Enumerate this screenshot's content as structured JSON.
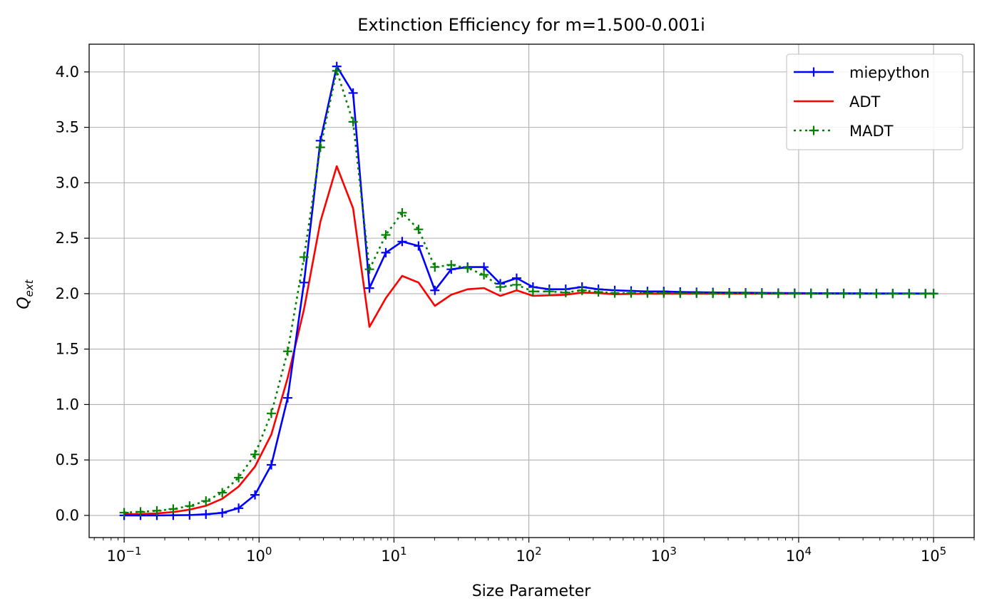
{
  "chart_data": {
    "type": "line",
    "title": "Extinction Efficiency for m=1.500-0.001i",
    "xlabel": "Size Parameter",
    "ylabel": "Q",
    "ylabel_sub": "ext",
    "xscale": "log",
    "xlim": [
      0.055,
      200000
    ],
    "ylim": [
      -0.2,
      4.25
    ],
    "grid": true,
    "legend_position": "top-right",
    "x_ticks": [
      {
        "value": 0.1,
        "base": "10",
        "exp": "−1"
      },
      {
        "value": 1,
        "base": "10",
        "exp": "0"
      },
      {
        "value": 10,
        "base": "10",
        "exp": "1"
      },
      {
        "value": 100,
        "base": "10",
        "exp": "2"
      },
      {
        "value": 1000,
        "base": "10",
        "exp": "3"
      },
      {
        "value": 10000,
        "base": "10",
        "exp": "4"
      },
      {
        "value": 100000,
        "base": "10",
        "exp": "5"
      }
    ],
    "y_ticks": [
      {
        "value": 0.0,
        "label": "0.0"
      },
      {
        "value": 0.5,
        "label": "0.5"
      },
      {
        "value": 1.0,
        "label": "1.0"
      },
      {
        "value": 1.5,
        "label": "1.5"
      },
      {
        "value": 2.0,
        "label": "2.0"
      },
      {
        "value": 2.5,
        "label": "2.5"
      },
      {
        "value": 3.0,
        "label": "3.0"
      },
      {
        "value": 3.5,
        "label": "3.5"
      },
      {
        "value": 4.0,
        "label": "4.0"
      }
    ],
    "x": [
      0.1,
      0.1322,
      0.1748,
      0.231,
      0.3054,
      0.4037,
      0.5337,
      0.7056,
      0.9327,
      1.233,
      1.63,
      2.155,
      2.849,
      3.767,
      4.979,
      6.582,
      8.702,
      11.5,
      15.21,
      20.1,
      26.58,
      35.14,
      46.45,
      61.41,
      81.18,
      107.3,
      141.9,
      187.6,
      248.0,
      327.8,
      433.3,
      572.9,
      757.3,
      1001,
      1324,
      1750,
      2313,
      3058,
      4043,
      5344,
      7065,
      9340,
      12350,
      16320,
      21580,
      28520,
      37710,
      49850,
      65900,
      87120,
      100000
    ],
    "series": [
      {
        "name": "miepython",
        "color": "#0000ff",
        "line_style": "solid",
        "marker": "+",
        "values": [
          0.0,
          0.0,
          0.0,
          0.001,
          0.003,
          0.01,
          0.023,
          0.065,
          0.185,
          0.456,
          1.06,
          2.1,
          3.38,
          4.05,
          3.81,
          2.05,
          2.37,
          2.47,
          2.43,
          2.03,
          2.22,
          2.24,
          2.24,
          2.09,
          2.14,
          2.06,
          2.04,
          2.04,
          2.06,
          2.04,
          2.03,
          2.025,
          2.02,
          2.02,
          2.015,
          2.013,
          2.011,
          2.009,
          2.008,
          2.007,
          2.006,
          2.005,
          2.004,
          2.004,
          2.003,
          2.003,
          2.002,
          2.002,
          2.002,
          2.001,
          2.001
        ]
      },
      {
        "name": "ADT",
        "color": "#ff0000",
        "line_style": "solid",
        "marker": "none",
        "values": [
          0.01,
          0.013,
          0.018,
          0.03,
          0.052,
          0.087,
          0.15,
          0.26,
          0.44,
          0.73,
          1.24,
          1.86,
          2.65,
          3.15,
          2.77,
          1.7,
          1.96,
          2.16,
          2.1,
          1.89,
          1.99,
          2.04,
          2.05,
          1.98,
          2.03,
          1.98,
          1.985,
          1.99,
          2.01,
          2.005,
          1.995,
          1.998,
          2.0,
          2.0,
          2.0,
          2.0,
          2.0,
          2.0,
          2.0,
          2.0,
          2.0,
          2.0,
          2.0,
          2.0,
          2.0,
          2.0,
          2.0,
          2.0,
          2.0,
          2.0,
          2.0
        ]
      },
      {
        "name": "MADT",
        "color": "#008000",
        "line_style": "dotted",
        "marker": "+",
        "values": [
          0.025,
          0.032,
          0.042,
          0.058,
          0.085,
          0.13,
          0.205,
          0.34,
          0.55,
          0.92,
          1.48,
          2.33,
          3.32,
          4.01,
          3.55,
          2.22,
          2.53,
          2.73,
          2.58,
          2.24,
          2.26,
          2.23,
          2.17,
          2.06,
          2.08,
          2.02,
          2.02,
          2.01,
          2.03,
          2.015,
          2.005,
          2.005,
          2.005,
          2.004,
          2.003,
          2.003,
          2.002,
          2.002,
          2.002,
          2.001,
          2.001,
          2.001,
          2.001,
          2.001,
          2.0,
          2.0,
          2.0,
          2.0,
          2.0,
          2.0,
          2.0
        ]
      }
    ]
  }
}
